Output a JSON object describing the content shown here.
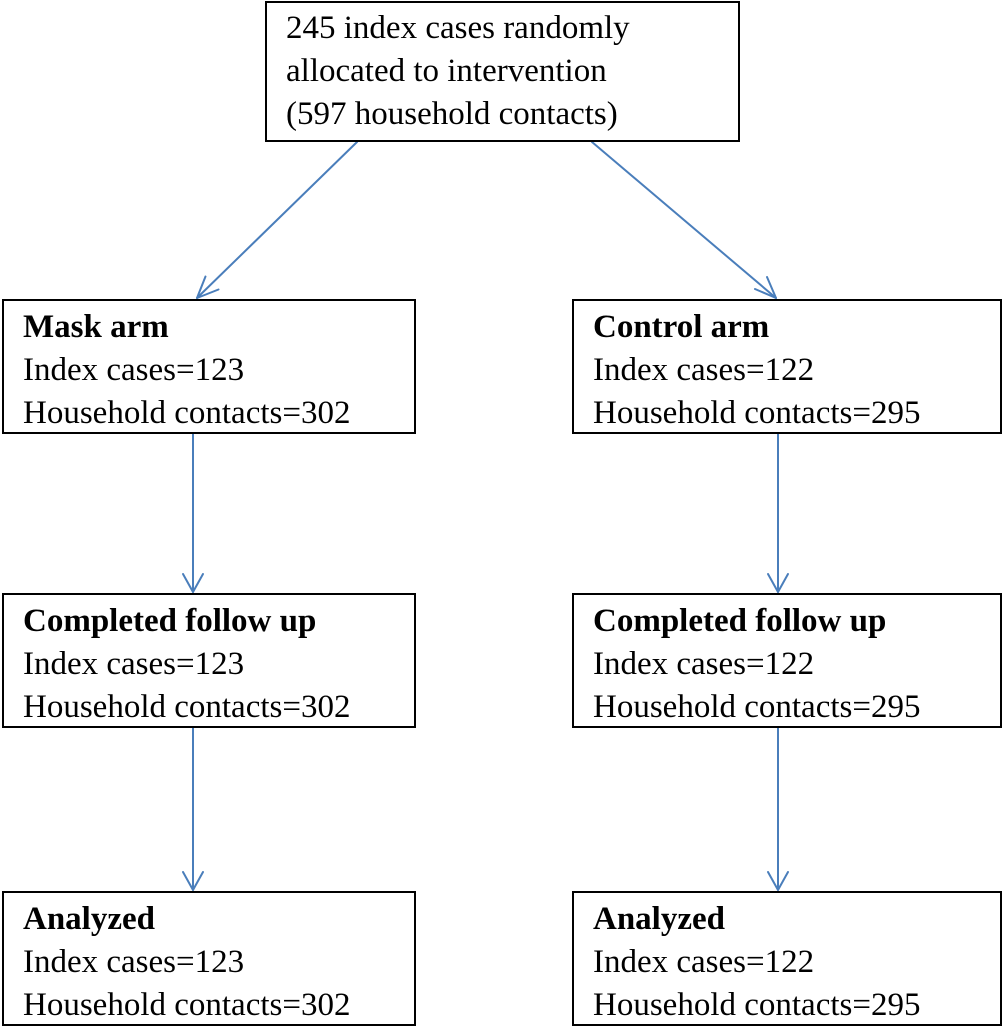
{
  "colors": {
    "arrow": "#4a7ebb",
    "box_border": "#000000",
    "text": "#000000"
  },
  "top": {
    "lines": [
      "245 index cases randomly",
      "allocated to intervention",
      "(597 household contacts)"
    ]
  },
  "mask_arm": {
    "title": "Mask arm",
    "index": "Index cases=123",
    "contacts": "Household contacts=302"
  },
  "control_arm": {
    "title": "Control arm",
    "index": "Index cases=122",
    "contacts": "Household contacts=295"
  },
  "mask_follow": {
    "title": "Completed follow up",
    "index": "Index cases=123",
    "contacts": "Household contacts=302"
  },
  "control_follow": {
    "title": "Completed follow up",
    "index": "Index cases=122",
    "contacts": "Household contacts=295"
  },
  "mask_analyzed": {
    "title": "Analyzed",
    "index": "Index cases=123",
    "contacts": "Household contacts=302"
  },
  "control_analyzed": {
    "title": "Analyzed",
    "index": "Index cases=122",
    "contacts": "Household contacts=295"
  }
}
